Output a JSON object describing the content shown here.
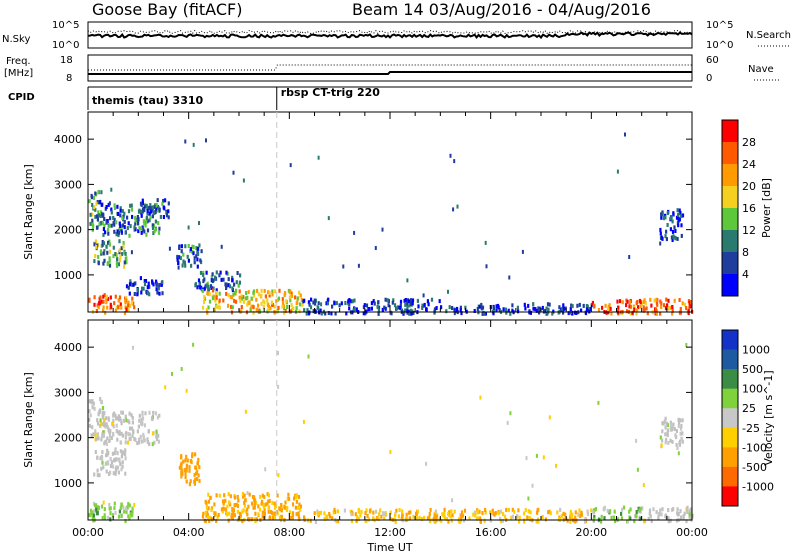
{
  "header": {
    "station": "Goose Bay (fitACF)",
    "beam_info": "Beam 14 03/Aug/2016 - 04/Aug/2016"
  },
  "noise_panel": {
    "left_label": "N.Sky",
    "left_ticks": [
      "10^5",
      "10^0"
    ],
    "right_ticks": [
      "10^5",
      "10^0"
    ],
    "right_label": "N.Search"
  },
  "freq_panel": {
    "left_label_1": "Freq.",
    "left_label_2": "[MHz]",
    "left_ticks": [
      "18",
      "8"
    ],
    "right_ticks": [
      "60",
      "0"
    ],
    "right_label": "Nave"
  },
  "cpid_panel": {
    "label": "CPID",
    "modes": [
      {
        "name": "themis (tau) 3310",
        "start_hour": 0
      },
      {
        "name": "rbsp CT-trig 220",
        "start_hour": 7.5
      }
    ]
  },
  "colors": {
    "power_scale": [
      "#0000ff",
      "#1e3d9c",
      "#2a7a70",
      "#5dc83a",
      "#f5d020",
      "#ff9a00",
      "#ff5a00",
      "#ff0000"
    ],
    "velocity_scale": [
      "#ff0000",
      "#ff6a00",
      "#ffa000",
      "#ffcf00",
      "#c8c8c8",
      "#7fd23c",
      "#3c8c46",
      "#1e5aa0",
      "#1432c8"
    ],
    "ground_scatter": "#c0c0c0"
  },
  "chart_data": [
    {
      "type": "heatmap",
      "name": "power",
      "ylabel": "Slant Range [km]",
      "xlabel": "",
      "ylim": [
        180,
        4600
      ],
      "xlim_hours": [
        0,
        24
      ],
      "yticks": [
        1000,
        2000,
        3000,
        4000
      ],
      "colorbar": {
        "label": "Power [dB]",
        "range": [
          0,
          32
        ],
        "ticks": [
          "28",
          "24",
          "20",
          "16",
          "12",
          "8",
          "4"
        ]
      },
      "regions": [
        {
          "t0": 0.0,
          "t1": 1.8,
          "r0": 200,
          "r1": 600,
          "value": 24
        },
        {
          "t0": 0.0,
          "t1": 0.5,
          "r0": 2000,
          "r1": 2900,
          "value": 10
        },
        {
          "t0": 0.2,
          "t1": 1.5,
          "r0": 1200,
          "r1": 1800,
          "value": 12
        },
        {
          "t0": 0.5,
          "t1": 2.8,
          "r0": 1900,
          "r1": 2600,
          "value": 8
        },
        {
          "t0": 2.0,
          "t1": 3.2,
          "r0": 2300,
          "r1": 2700,
          "value": 6
        },
        {
          "t0": 1.5,
          "t1": 3.0,
          "r0": 600,
          "r1": 1000,
          "value": 5
        },
        {
          "t0": 3.5,
          "t1": 4.5,
          "r0": 1200,
          "r1": 1700,
          "value": 8
        },
        {
          "t0": 4.2,
          "t1": 6.0,
          "r0": 700,
          "r1": 1100,
          "value": 6
        },
        {
          "t0": 4.5,
          "t1": 8.5,
          "r0": 200,
          "r1": 700,
          "value": 20
        },
        {
          "t0": 8.5,
          "t1": 14.0,
          "r0": 180,
          "r1": 500,
          "value": 5
        },
        {
          "t0": 14.0,
          "t1": 20.0,
          "r0": 180,
          "r1": 400,
          "value": 5
        },
        {
          "t0": 20.0,
          "t1": 24.0,
          "r0": 180,
          "r1": 500,
          "value": 26
        },
        {
          "t0": 22.7,
          "t1": 23.6,
          "r0": 1800,
          "r1": 2500,
          "value": 5
        }
      ]
    },
    {
      "type": "heatmap",
      "name": "velocity",
      "ylabel": "Slant Range [km]",
      "xlabel": "Time UT",
      "ylim": [
        180,
        4600
      ],
      "xlim_hours": [
        0,
        24
      ],
      "yticks": [
        1000,
        2000,
        3000,
        4000
      ],
      "xtick_labels": [
        "00:00",
        "04:00",
        "08:00",
        "12:00",
        "16:00",
        "20:00",
        "00:00"
      ],
      "colorbar": {
        "label": "Velocity [m s^-1]",
        "ticks": [
          "1000",
          "500",
          "100",
          "25",
          "-25",
          "-100",
          "-500",
          "-1000"
        ]
      },
      "regions": [
        {
          "t0": 0.0,
          "t1": 1.8,
          "r0": 200,
          "r1": 600,
          "value": 50
        },
        {
          "t0": 0.0,
          "t1": 0.6,
          "r0": 2000,
          "r1": 2900,
          "value": 0
        },
        {
          "t0": 0.2,
          "t1": 1.5,
          "r0": 1200,
          "r1": 1800,
          "value": 0
        },
        {
          "t0": 0.5,
          "t1": 2.8,
          "r0": 1900,
          "r1": 2600,
          "value": 0
        },
        {
          "t0": 3.6,
          "t1": 4.4,
          "r0": 1000,
          "r1": 1700,
          "value": -300
        },
        {
          "t0": 4.5,
          "t1": 8.5,
          "r0": 200,
          "r1": 800,
          "value": -150
        },
        {
          "t0": 8.5,
          "t1": 20.0,
          "r0": 180,
          "r1": 450,
          "value": -80
        },
        {
          "t0": 20.0,
          "t1": 22.0,
          "r0": 180,
          "r1": 500,
          "value": 60
        },
        {
          "t0": 22.0,
          "t1": 24.0,
          "r0": 180,
          "r1": 500,
          "value": 0
        },
        {
          "t0": 22.7,
          "t1": 23.6,
          "r0": 1800,
          "r1": 2500,
          "value": 0
        }
      ]
    }
  ]
}
